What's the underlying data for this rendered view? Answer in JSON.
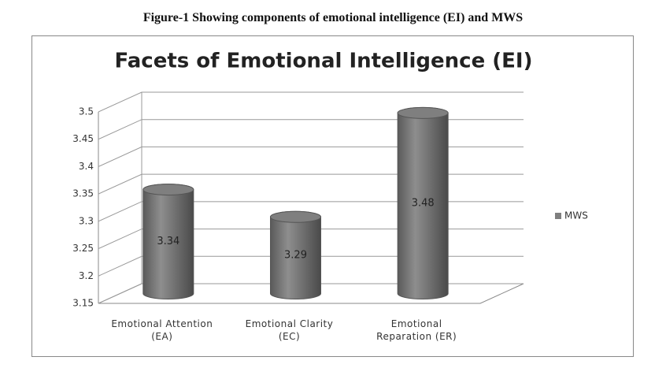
{
  "chart_data": {
    "type": "bar3d",
    "caption": "Figure-1 Showing components of emotional intelligence (EI) and MWS",
    "title": "Facets of Emotional Intelligence (EI)",
    "categories": [
      "Emotional Attention (EA)",
      "Emotional Clarity (EC)",
      "Emotional Reparation (ER)"
    ],
    "series": [
      {
        "name": "MWS",
        "color": "#7f7f7f",
        "values": [
          3.34,
          3.29,
          3.48
        ]
      }
    ],
    "ylim": [
      3.15,
      3.5
    ],
    "yticks": [
      3.15,
      3.2,
      3.25,
      3.3,
      3.35,
      3.4,
      3.45,
      3.5
    ],
    "grid": true,
    "legend": "right"
  }
}
